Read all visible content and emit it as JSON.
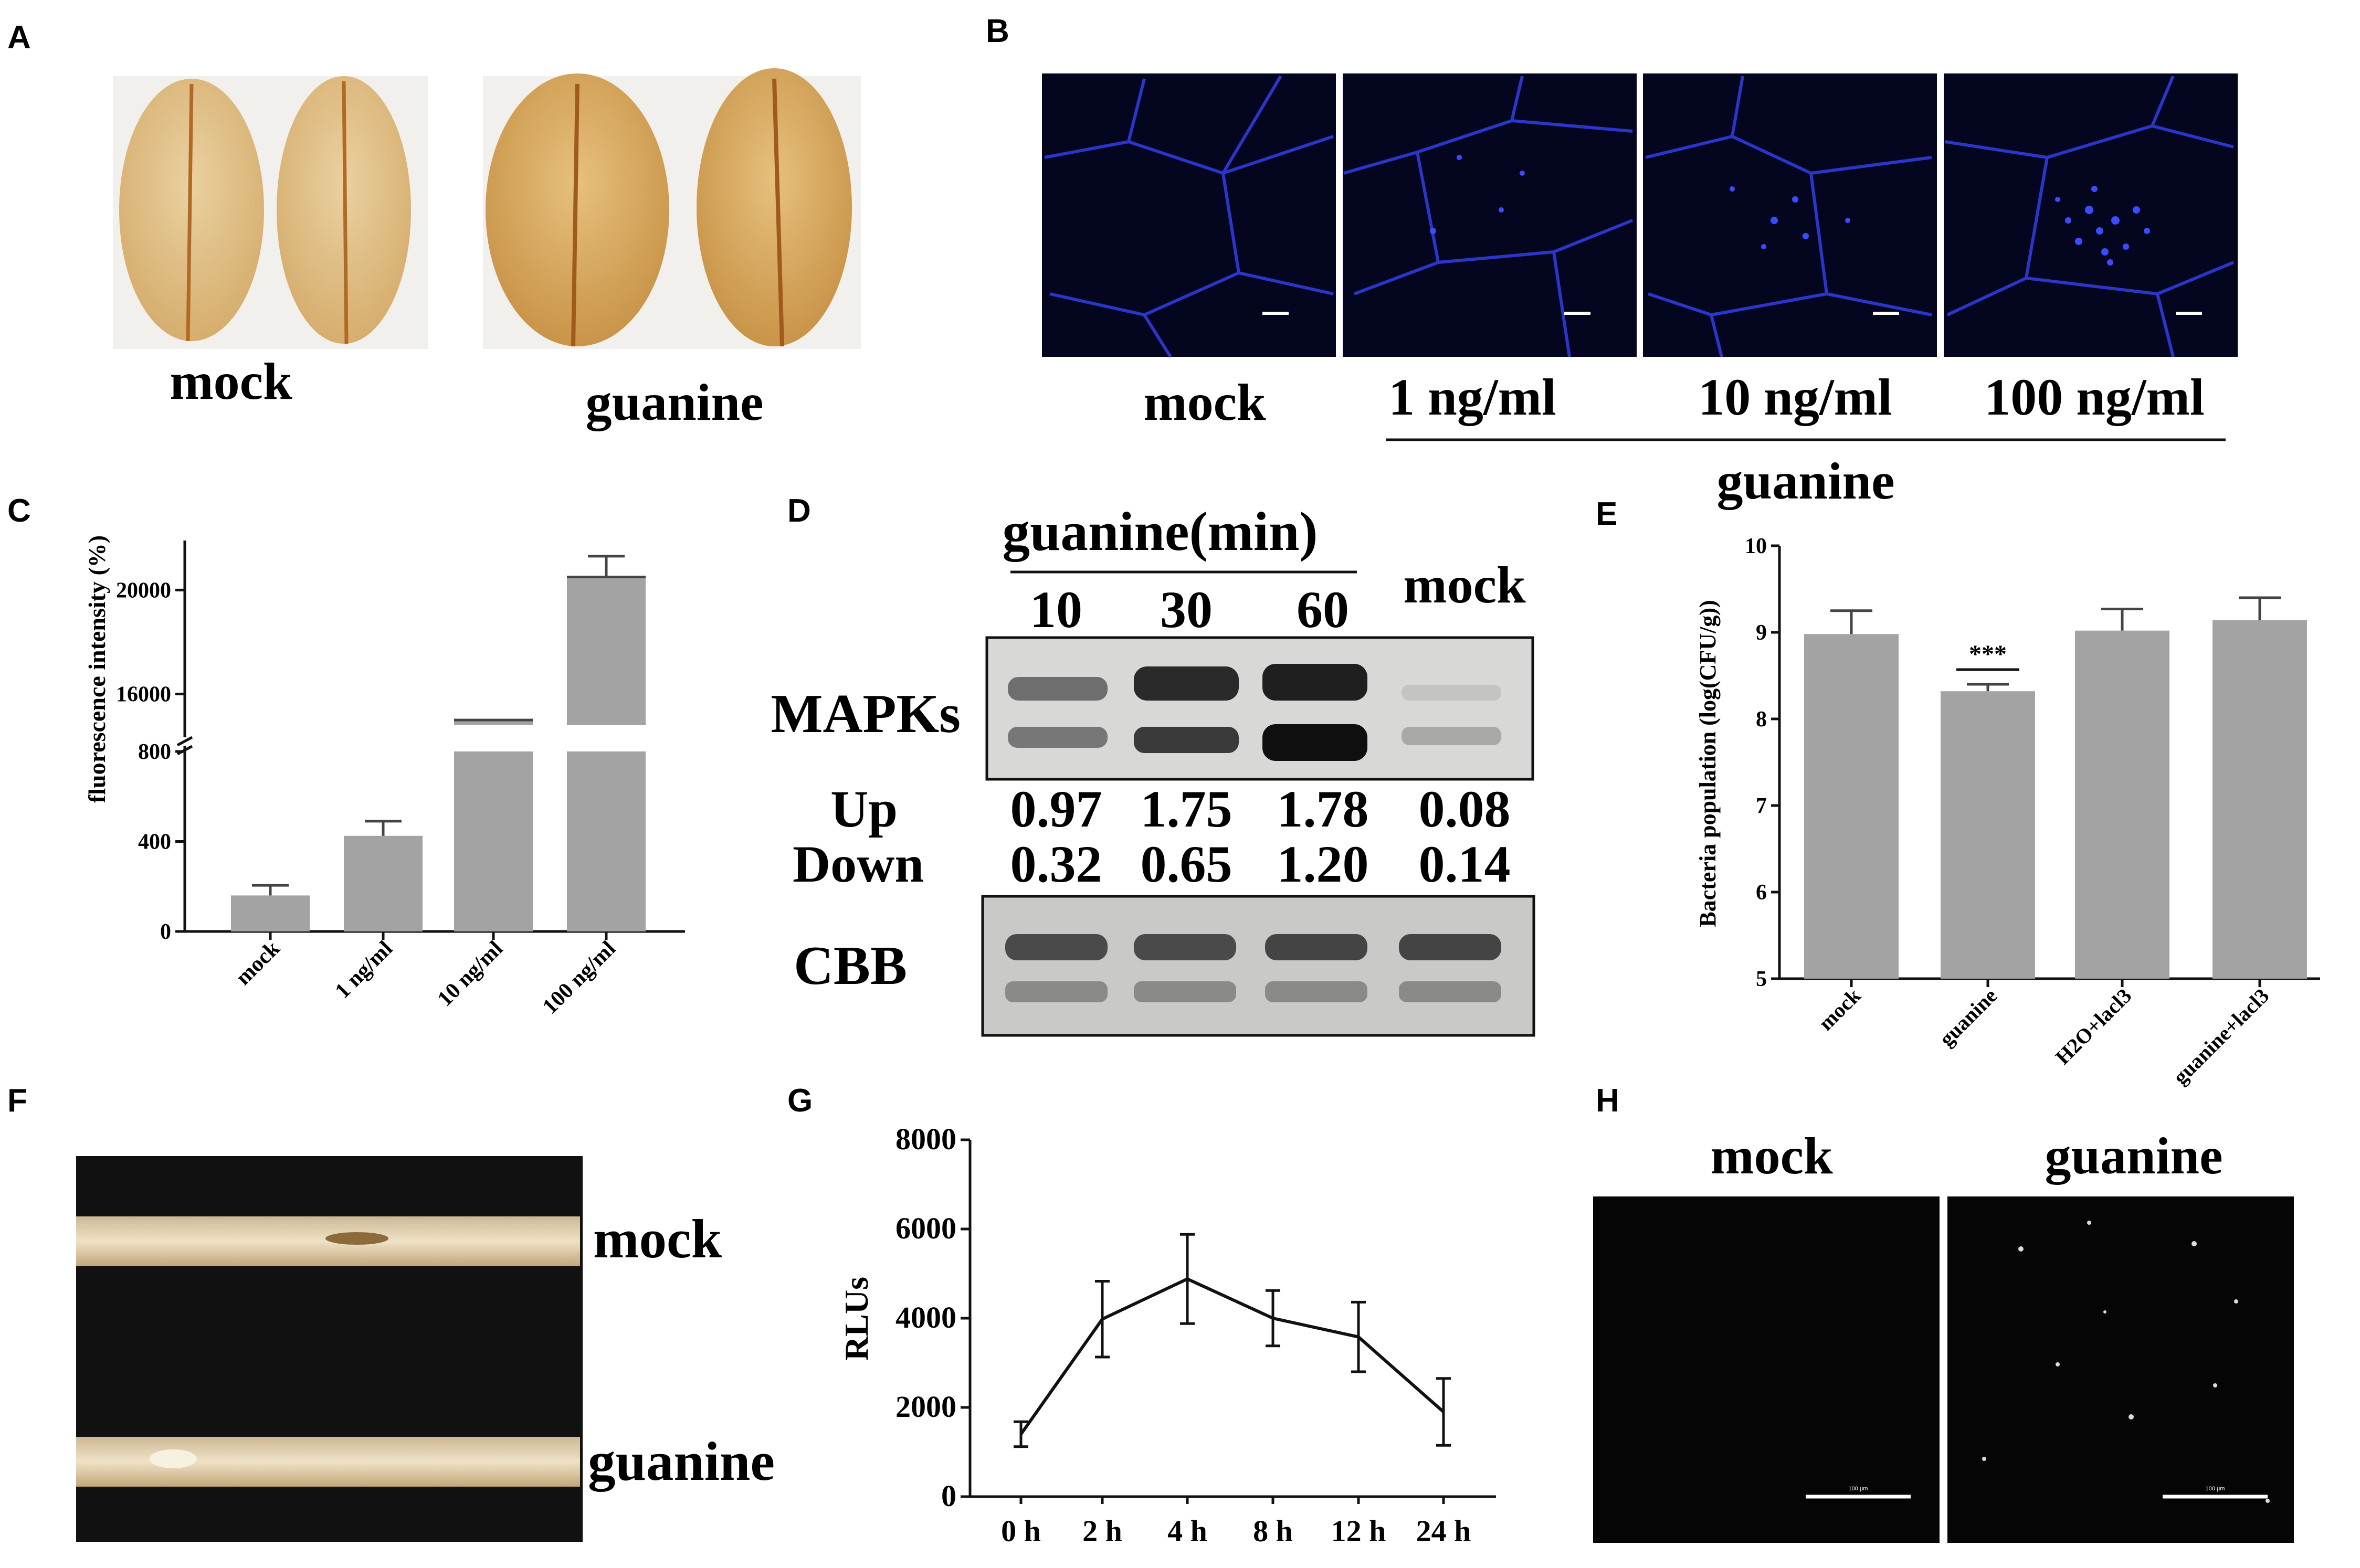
{
  "panels": {
    "A": {
      "label": "A",
      "captions": [
        "mock",
        "guanine"
      ]
    },
    "B": {
      "label": "B",
      "captions": [
        "mock",
        "1 ng/ml",
        "10 ng/ml",
        "100 ng/ml"
      ],
      "group_label": "guanine"
    },
    "C": {
      "label": "C"
    },
    "D": {
      "label": "D",
      "header": "guanine(min)",
      "lanes": [
        "10",
        "30",
        "60",
        "mock"
      ],
      "row_labels": {
        "mapks": "MAPKs",
        "up": "Up",
        "down": "Down",
        "cbb": "CBB"
      },
      "up_values": [
        "0.97",
        "1.75",
        "1.78",
        "0.08"
      ],
      "down_values": [
        "0.32",
        "0.65",
        "1.20",
        "0.14"
      ]
    },
    "E": {
      "label": "E",
      "significance": "***"
    },
    "F": {
      "label": "F",
      "captions": [
        "mock",
        "guanine"
      ]
    },
    "G": {
      "label": "G"
    },
    "H": {
      "label": "H",
      "captions": [
        "mock",
        "guanine"
      ],
      "scale_text": "100 μm"
    }
  },
  "chart_data": [
    {
      "panel": "C",
      "type": "bar",
      "ylabel": "fluorescence intensity (%)",
      "categories": [
        "mock",
        "1 ng/ml",
        "10 ng/ml",
        "100 ng/ml"
      ],
      "values": [
        160,
        425,
        15000,
        20500
      ],
      "errors": [
        45,
        65,
        0,
        800
      ],
      "axis_break": true,
      "lower_ylim": [
        0,
        800
      ],
      "upper_ylim": [
        14800,
        21500
      ],
      "lower_ticks": [
        "0",
        "400",
        "800"
      ],
      "upper_ticks": [
        "16000",
        "20000"
      ],
      "grid": false
    },
    {
      "panel": "E",
      "type": "bar",
      "ylabel": "Bacteria population (log(CFU/g))",
      "categories": [
        "mock",
        "guanine",
        "H2O+lacl3",
        "guanine+lacl3"
      ],
      "values": [
        8.98,
        8.32,
        9.02,
        9.14
      ],
      "errors": [
        0.27,
        0.08,
        0.25,
        0.26
      ],
      "ylim": [
        5,
        10
      ],
      "yticks": [
        "5",
        "6",
        "7",
        "8",
        "9",
        "10"
      ],
      "grid": false
    },
    {
      "panel": "G",
      "type": "line",
      "ylabel": "RLUs",
      "categories": [
        "0 h",
        "2 h",
        "4 h",
        "8 h",
        "12 h",
        "24 h"
      ],
      "values": [
        1400,
        3980,
        4880,
        4000,
        3580,
        1900
      ],
      "errors": [
        280,
        850,
        1000,
        620,
        780,
        750
      ],
      "ylim": [
        0,
        8000
      ],
      "yticks": [
        "0",
        "2000",
        "4000",
        "6000",
        "8000"
      ],
      "grid": false
    }
  ]
}
